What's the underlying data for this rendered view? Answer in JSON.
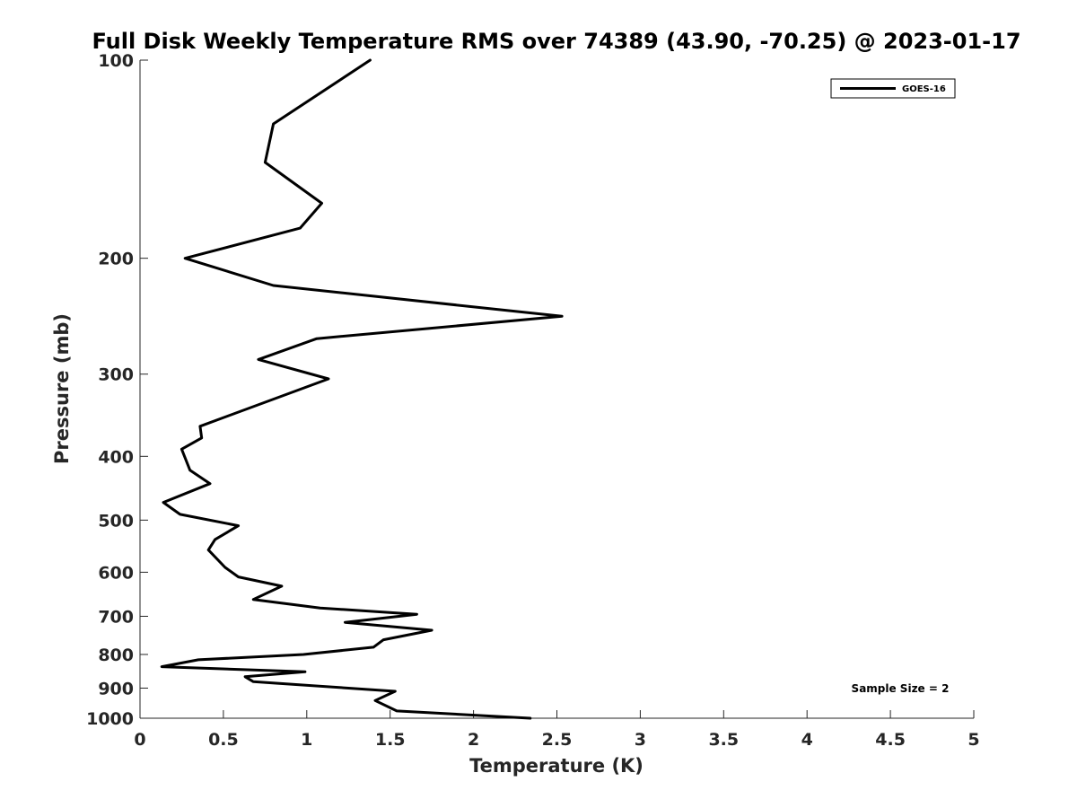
{
  "chart_data": {
    "type": "line",
    "title": "Full Disk Weekly Temperature RMS over 74389 (43.90, -70.25) @ 2023-01-17",
    "xlabel": "Temperature (K)",
    "ylabel": "Pressure (mb)",
    "xlim": [
      0,
      5
    ],
    "ylim": [
      100,
      1000
    ],
    "yscale": "log",
    "y_reversed": true,
    "x_ticks": [
      "0",
      "0.5",
      "1",
      "1.5",
      "2",
      "2.5",
      "3",
      "3.5",
      "4",
      "4.5",
      "5"
    ],
    "y_ticks": [
      "100",
      "200",
      "300",
      "400",
      "500",
      "600",
      "700",
      "800",
      "900",
      "1000"
    ],
    "grid": false,
    "legend_position": "top-right",
    "annotation": "Sample Size = 2",
    "series": [
      {
        "name": "GOES-16",
        "color": "#000000",
        "x": [
          1.38,
          0.8,
          0.75,
          1.09,
          0.96,
          0.27,
          0.8,
          2.53,
          1.06,
          0.71,
          1.13,
          0.36,
          0.37,
          0.25,
          0.3,
          0.42,
          0.14,
          0.24,
          0.59,
          0.45,
          0.41,
          0.51,
          0.59,
          0.85,
          0.68,
          1.08,
          1.66,
          1.23,
          1.75,
          1.46,
          1.4,
          0.98,
          0.35,
          0.13,
          0.99,
          0.63,
          0.68,
          1.53,
          1.41,
          1.54,
          2.34
        ],
        "y": [
          100,
          125,
          143,
          165,
          180,
          200,
          220,
          245,
          265,
          285,
          305,
          360,
          375,
          390,
          420,
          440,
          470,
          490,
          510,
          535,
          555,
          590,
          610,
          630,
          660,
          680,
          695,
          715,
          735,
          760,
          780,
          800,
          815,
          835,
          850,
          865,
          880,
          910,
          940,
          975,
          1000
        ]
      }
    ]
  }
}
